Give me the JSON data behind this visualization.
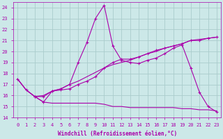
{
  "xlabel": "Windchill (Refroidissement éolien,°C)",
  "background_color": "#cce8e8",
  "grid_color": "#aacccc",
  "line_color": "#aa00aa",
  "xlim": [
    -0.5,
    23.5
  ],
  "ylim": [
    14,
    24.5
  ],
  "yticks": [
    14,
    15,
    16,
    17,
    18,
    19,
    20,
    21,
    22,
    23,
    24
  ],
  "xticks": [
    0,
    1,
    2,
    3,
    4,
    5,
    6,
    7,
    8,
    9,
    10,
    11,
    12,
    13,
    14,
    15,
    16,
    17,
    18,
    19,
    20,
    21,
    22,
    23
  ],
  "xlabel_fontsize": 5.5,
  "tick_fontsize": 5,
  "lines": [
    {
      "x": [
        0,
        1,
        2,
        3,
        4,
        5,
        6,
        7,
        8,
        9,
        10,
        11,
        12,
        13,
        14,
        15,
        16,
        17,
        18,
        19,
        20,
        21,
        22,
        23
      ],
      "y": [
        17.5,
        16.5,
        15.9,
        15.4,
        15.3,
        15.3,
        15.3,
        15.3,
        15.3,
        15.3,
        15.2,
        15.0,
        15.0,
        14.9,
        14.9,
        14.9,
        14.9,
        14.9,
        14.9,
        14.8,
        14.8,
        14.7,
        14.7,
        14.6
      ],
      "marker": null,
      "linestyle": "-",
      "linewidth": 0.8
    },
    {
      "x": [
        0,
        1,
        2,
        3,
        4,
        5,
        6,
        7,
        8,
        9,
        10,
        11,
        12,
        13,
        14,
        15,
        16,
        17,
        18,
        19,
        20,
        21,
        22,
        23
      ],
      "y": [
        17.5,
        16.5,
        15.9,
        16.0,
        16.4,
        16.6,
        17.0,
        17.3,
        17.7,
        18.1,
        18.5,
        18.8,
        19.0,
        19.2,
        19.5,
        19.8,
        20.0,
        20.3,
        20.5,
        20.7,
        21.0,
        21.1,
        21.2,
        21.3
      ],
      "marker": null,
      "linestyle": "-",
      "linewidth": 0.8
    },
    {
      "x": [
        2,
        3,
        4,
        5,
        6,
        7,
        8,
        9,
        10,
        11,
        12,
        13,
        14,
        15,
        16,
        17,
        18,
        19,
        20,
        21,
        22,
        23
      ],
      "y": [
        15.9,
        15.4,
        16.4,
        16.5,
        16.6,
        17.0,
        17.3,
        17.7,
        18.5,
        19.0,
        19.3,
        19.3,
        19.5,
        19.8,
        20.1,
        20.3,
        20.5,
        20.7,
        21.0,
        21.0,
        21.2,
        21.3
      ],
      "marker": "+",
      "linestyle": "-",
      "linewidth": 0.8
    },
    {
      "x": [
        0,
        1,
        2,
        3,
        4,
        5,
        6,
        7,
        8,
        9,
        10,
        11,
        12,
        13,
        14,
        15,
        16,
        17,
        18,
        19,
        20,
        21,
        22,
        23
      ],
      "y": [
        17.5,
        16.5,
        15.9,
        15.9,
        16.4,
        16.6,
        17.0,
        19.0,
        20.8,
        23.0,
        24.2,
        20.5,
        19.2,
        19.0,
        18.9,
        19.2,
        19.4,
        19.8,
        20.3,
        20.6,
        18.5,
        16.3,
        15.0,
        14.5
      ],
      "marker": "+",
      "linestyle": "-",
      "linewidth": 0.8
    }
  ]
}
